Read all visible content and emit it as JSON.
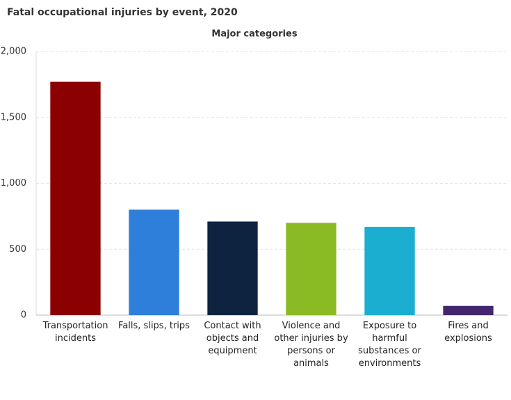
{
  "chart_data": {
    "type": "bar",
    "title": "Fatal occupational injuries by event, 2020",
    "subtitle": "Major categories",
    "categories": [
      "Transportation incidents",
      "Falls, slips, trips",
      "Contact with objects and equipment",
      "Violence and other injuries by persons or animals",
      "Exposure to harmful substances or environments",
      "Fires and explosions"
    ],
    "values": [
      1770,
      800,
      710,
      700,
      670,
      70
    ],
    "colors": [
      "#8b0000",
      "#2e7fd9",
      "#0d2340",
      "#8aba24",
      "#1baed0",
      "#44266e"
    ],
    "ylim": [
      0,
      2000
    ],
    "yticks": [
      0,
      500,
      {
        "value": 1000,
        "label": "1,000"
      },
      {
        "value": 1500,
        "label": "1,500"
      },
      {
        "value": 2000,
        "label": "2,000"
      }
    ],
    "grid": true
  }
}
